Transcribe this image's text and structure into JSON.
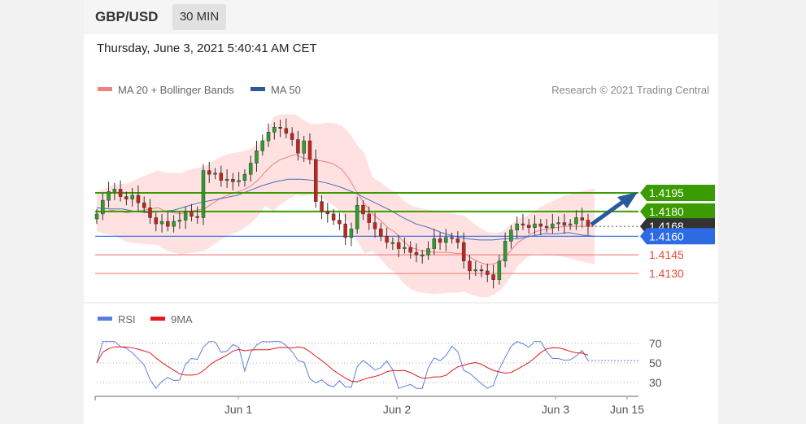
{
  "header": {
    "symbol": "GBP/USD",
    "timeframe": "30 MIN"
  },
  "datetime": "Thursday, June 3, 2021 5:40:41 AM CET",
  "legend": {
    "ma20": "MA 20 + Bollinger Bands",
    "ma50": "MA 50",
    "credit": "Research © 2021 Trading Central"
  },
  "rsi_legend": {
    "rsi": "RSI",
    "ma9": "9MA"
  },
  "colors": {
    "support": "#e74c3c",
    "resistance": "#3a9c00",
    "pivot": "#2d6be4",
    "arrow": "#2a5a9c",
    "up": "#2e9e2e",
    "down": "#c8221b",
    "ma20": "#f08080",
    "ma50": "#4a6fb5",
    "rsi": "#5b7fe0",
    "rsi_ma": "#e41a1c"
  },
  "chart_data": {
    "type": "candlestick",
    "levels": [
      {
        "label": "1.4195",
        "value": 1.4195,
        "kind": "resistance"
      },
      {
        "label": "1.4180",
        "value": 1.418,
        "kind": "resistance"
      },
      {
        "label": "1.4168",
        "value": 1.4168,
        "kind": "last"
      },
      {
        "label": "1.4160",
        "value": 1.416,
        "kind": "pivot"
      },
      {
        "label": "1.4145",
        "value": 1.4145,
        "kind": "support"
      },
      {
        "label": "1.4130",
        "value": 1.413,
        "kind": "support"
      }
    ],
    "close": [
      1.4178,
      1.4189,
      1.4196,
      1.4198,
      1.4192,
      1.419,
      1.4193,
      1.4187,
      1.4183,
      1.4175,
      1.417,
      1.4172,
      1.4168,
      1.4172,
      1.4173,
      1.418,
      1.4176,
      1.4175,
      1.4213,
      1.421,
      1.4211,
      1.4205,
      1.4206,
      1.4204,
      1.4205,
      1.421,
      1.4219,
      1.4229,
      1.4237,
      1.4244,
      1.4248,
      1.4247,
      1.4243,
      1.4238,
      1.4227,
      1.4237,
      1.4222,
      1.4188,
      1.418,
      1.4178,
      1.4173,
      1.417,
      1.4159,
      1.4166,
      1.4185,
      1.4178,
      1.4171,
      1.4166,
      1.416,
      1.4155,
      1.4155,
      1.415,
      1.4151,
      1.4147,
      1.4145,
      1.4145,
      1.415,
      1.4158,
      1.4155,
      1.4159,
      1.4158,
      1.4155,
      1.414,
      1.4132,
      1.4133,
      1.4132,
      1.4129,
      1.4125,
      1.414,
      1.4156,
      1.4165,
      1.417,
      1.4169,
      1.4167,
      1.417,
      1.4168,
      1.4167,
      1.417,
      1.4171,
      1.4169,
      1.417,
      1.4175,
      1.4173,
      1.4168
    ],
    "ma20": [
      1.418,
      1.418,
      1.4181,
      1.418,
      1.4179,
      1.418,
      1.4181,
      1.4182,
      1.4183,
      1.418,
      1.4179,
      1.4178,
      1.418,
      1.4181,
      1.4182,
      1.4186,
      1.419,
      1.4193,
      1.4195,
      1.4197,
      1.42,
      1.4205,
      1.4212,
      1.4218,
      1.4222,
      1.4224,
      1.4226,
      1.4223,
      1.4222,
      1.4221,
      1.422,
      1.4218,
      1.4214,
      1.4206,
      1.4195,
      1.4186,
      1.4178,
      1.4173,
      1.4167,
      1.4163,
      1.4156,
      1.4151,
      1.4149,
      1.4148,
      1.4147,
      1.4147,
      1.4147,
      1.4146,
      1.4146,
      1.4142,
      1.4139,
      1.4137,
      1.4138,
      1.4141,
      1.4148,
      1.4155,
      1.4159,
      1.4163,
      1.4165,
      1.4166,
      1.4167,
      1.4168,
      1.4168,
      1.4168,
      1.4168,
      1.4168
    ],
    "ma50": [
      1.4183,
      1.4182,
      1.4182,
      1.418,
      1.4179,
      1.418,
      1.4181,
      1.4184,
      1.4187,
      1.4189,
      1.4191,
      1.4193,
      1.4197,
      1.4201,
      1.4204,
      1.4206,
      1.4206,
      1.4205,
      1.4203,
      1.42,
      1.4196,
      1.4191,
      1.4186,
      1.4181,
      1.4175,
      1.417,
      1.4167,
      1.4163,
      1.416,
      1.4158,
      1.4157,
      1.4157,
      1.4158,
      1.4158,
      1.416,
      1.4162,
      1.4162,
      1.4163,
      1.4161,
      1.416
    ],
    "rsi": {
      "levels": [
        70,
        50,
        30
      ]
    },
    "x_labels": [
      "Jun 1",
      "Jun 2",
      "Jun 3",
      "Jun 15"
    ]
  }
}
